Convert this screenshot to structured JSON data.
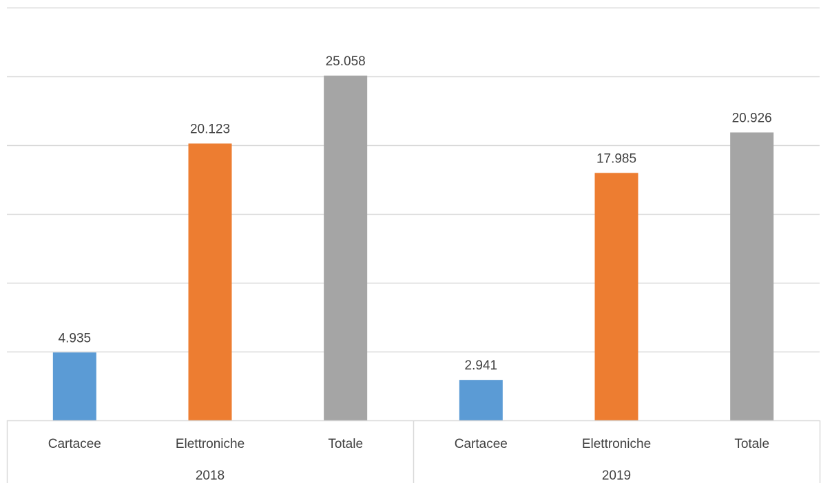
{
  "chart_data": {
    "type": "bar",
    "title": "",
    "xlabel": "",
    "ylabel": "",
    "ylim": [
      0,
      30000
    ],
    "y_grid_step": 5000,
    "grid": true,
    "legend": "none",
    "y_tick_labels_shown": false,
    "groups": [
      {
        "label": "2018",
        "categories": [
          "Cartacee",
          "Elettroniche",
          "Totale"
        ],
        "values": [
          4935,
          20123,
          25058
        ],
        "value_labels": [
          "4.935",
          "20.123",
          "25.058"
        ]
      },
      {
        "label": "2019",
        "categories": [
          "Cartacee",
          "Elettroniche",
          "Totale"
        ],
        "values": [
          2941,
          17985,
          20926
        ],
        "value_labels": [
          "2.941",
          "17.985",
          "20.926"
        ]
      }
    ],
    "category_colors": {
      "Cartacee": "#5B9BD5",
      "Elettroniche": "#ED7D31",
      "Totale": "#A5A5A5"
    },
    "colors": {
      "grid": "#D9D9D9",
      "axis": "#D9D9D9",
      "text": "#404040"
    }
  }
}
